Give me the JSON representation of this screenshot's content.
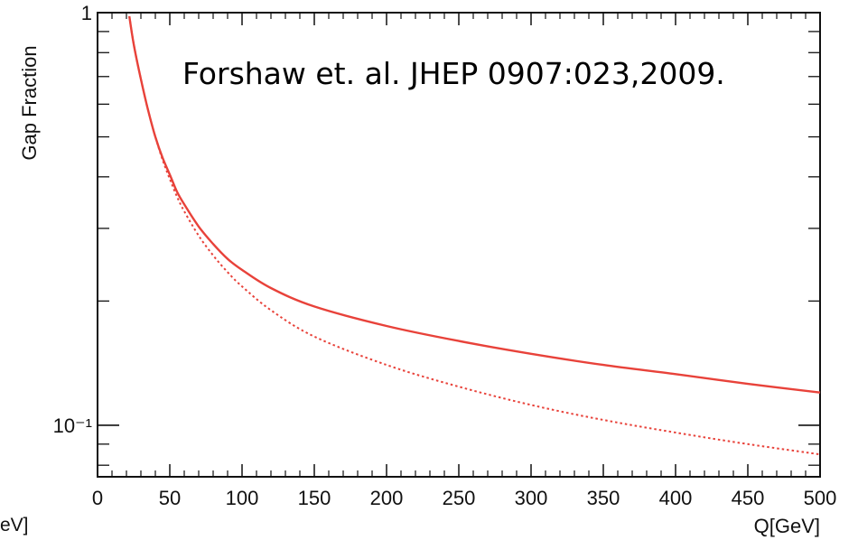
{
  "chart_data": {
    "type": "line",
    "title": "",
    "xlabel": "Q[GeV]",
    "ylabel": "Gap Fraction",
    "xlim": [
      0,
      500
    ],
    "ylim": [
      0.075,
      1.0
    ],
    "y_scale": "log",
    "x_ticks": [
      {
        "value": 0,
        "label": "0"
      },
      {
        "value": 50,
        "label": "50"
      },
      {
        "value": 100,
        "label": "100"
      },
      {
        "value": 150,
        "label": "150"
      },
      {
        "value": 200,
        "label": "200"
      },
      {
        "value": 250,
        "label": "250"
      },
      {
        "value": 300,
        "label": "300"
      },
      {
        "value": 350,
        "label": "350"
      },
      {
        "value": 400,
        "label": "400"
      },
      {
        "value": 450,
        "label": "450"
      },
      {
        "value": 500,
        "label": "500"
      }
    ],
    "y_major_ticks": [
      {
        "value": 1.0,
        "label": "1"
      },
      {
        "value": 0.1,
        "label": "10⁻¹"
      }
    ],
    "annotation": "Forshaw et. al. JHEP 0907:023,2009.",
    "left_cut_label": "eV]",
    "series": [
      {
        "style": "solid",
        "color": "#e8423a",
        "x": [
          22,
          25,
          30,
          35,
          40,
          45,
          50,
          55,
          60,
          70,
          80,
          90,
          100,
          120,
          150,
          200,
          250,
          300,
          350,
          400,
          450,
          500
        ],
        "y": [
          0.98,
          0.84,
          0.69,
          0.58,
          0.5,
          0.445,
          0.405,
          0.368,
          0.343,
          0.303,
          0.275,
          0.253,
          0.238,
          0.215,
          0.194,
          0.174,
          0.16,
          0.149,
          0.14,
          0.133,
          0.126,
          0.12
        ]
      },
      {
        "style": "dotted",
        "color": "#e8423a",
        "x": [
          22,
          25,
          30,
          35,
          40,
          45,
          50,
          55,
          60,
          70,
          80,
          90,
          100,
          120,
          150,
          200,
          250,
          300,
          350,
          400,
          450,
          500
        ],
        "y": [
          0.98,
          0.84,
          0.69,
          0.58,
          0.5,
          0.44,
          0.395,
          0.358,
          0.33,
          0.288,
          0.258,
          0.235,
          0.217,
          0.19,
          0.164,
          0.14,
          0.124,
          0.112,
          0.103,
          0.096,
          0.09,
          0.085
        ]
      }
    ]
  }
}
